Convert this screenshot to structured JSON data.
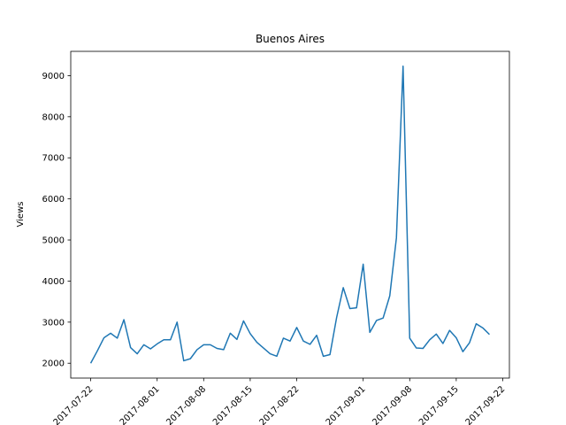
{
  "chart_data": {
    "type": "line",
    "title": "Buenos Aires",
    "y_label": "Views",
    "color": "#1f77b4",
    "x": [
      "2017-07-22",
      "2017-07-23",
      "2017-07-24",
      "2017-07-25",
      "2017-07-26",
      "2017-07-27",
      "2017-07-28",
      "2017-07-29",
      "2017-07-30",
      "2017-07-31",
      "2017-08-01",
      "2017-08-02",
      "2017-08-03",
      "2017-08-04",
      "2017-08-05",
      "2017-08-06",
      "2017-08-07",
      "2017-08-08",
      "2017-08-09",
      "2017-08-10",
      "2017-08-11",
      "2017-08-12",
      "2017-08-13",
      "2017-08-14",
      "2017-08-15",
      "2017-08-16",
      "2017-08-17",
      "2017-08-18",
      "2017-08-19",
      "2017-08-20",
      "2017-08-21",
      "2017-08-22",
      "2017-08-23",
      "2017-08-24",
      "2017-08-25",
      "2017-08-26",
      "2017-08-27",
      "2017-08-28",
      "2017-08-29",
      "2017-08-30",
      "2017-08-31",
      "2017-09-01",
      "2017-09-02",
      "2017-09-03",
      "2017-09-04",
      "2017-09-05",
      "2017-09-06",
      "2017-09-07",
      "2017-09-08",
      "2017-09-09",
      "2017-09-10",
      "2017-09-11",
      "2017-09-12",
      "2017-09-13",
      "2017-09-14",
      "2017-09-15",
      "2017-09-16",
      "2017-09-17",
      "2017-09-18",
      "2017-09-19",
      "2017-09-20"
    ],
    "values": [
      2000,
      2300,
      2620,
      2730,
      2610,
      3060,
      2380,
      2230,
      2450,
      2350,
      2470,
      2570,
      2570,
      3000,
      2060,
      2110,
      2330,
      2450,
      2450,
      2360,
      2330,
      2730,
      2580,
      3030,
      2720,
      2510,
      2370,
      2230,
      2170,
      2610,
      2540,
      2870,
      2540,
      2460,
      2680,
      2170,
      2210,
      3110,
      3840,
      3330,
      3350,
      4410,
      2750,
      3040,
      3100,
      3640,
      5050,
      9230,
      2610,
      2370,
      2360,
      2570,
      2710,
      2480,
      2800,
      2620,
      2280,
      2500,
      2960,
      2860,
      2700
    ],
    "xlim": [
      "2017-07-19",
      "2017-09-23"
    ],
    "xticks": [
      "2017-07-22",
      "2017-08-01",
      "2017-08-08",
      "2017-08-15",
      "2017-08-22",
      "2017-09-01",
      "2017-09-08",
      "2017-09-15",
      "2017-09-22"
    ],
    "ylim": [
      1638.5,
      9591.5
    ],
    "yticks": [
      2000,
      3000,
      4000,
      5000,
      6000,
      7000,
      8000,
      9000
    ]
  }
}
